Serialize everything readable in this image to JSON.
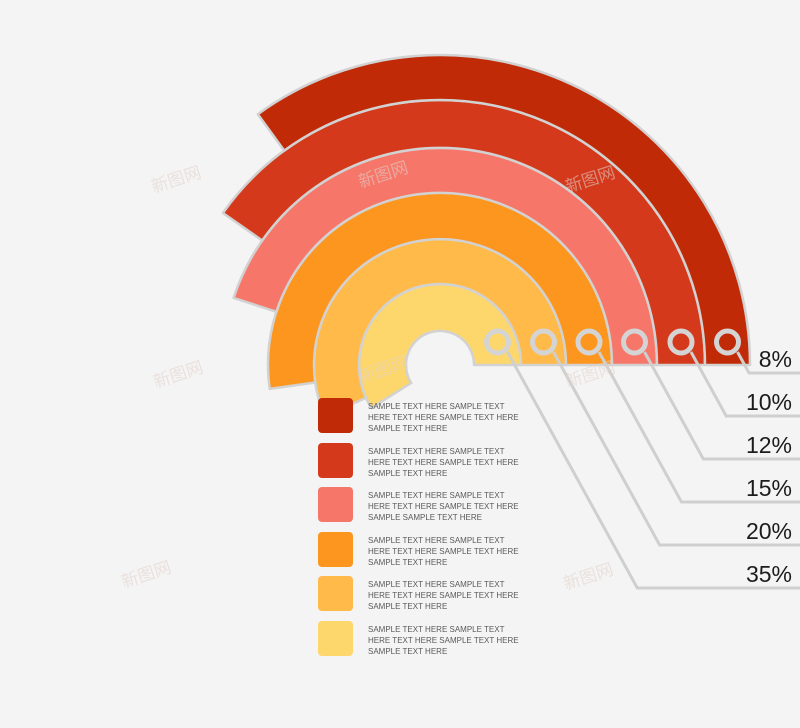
{
  "chart_data": {
    "type": "radial-bar",
    "values": [
      8,
      10,
      12,
      15,
      20,
      35
    ],
    "value_labels": [
      "8%",
      "10%",
      "12%",
      "15%",
      "20%",
      "35%"
    ],
    "unit": "%",
    "colors": [
      "#c02a07",
      "#d4391c",
      "#f6766a",
      "#fd961f",
      "#ffba4a",
      "#fdd76b"
    ],
    "legend": [
      {
        "color": "#c02a07",
        "text": "SAMPLE TEXT HERE SAMPLE TEXT HERE TEXT HERE SAMPLE TEXT HERE SAMPLE TEXT HERE"
      },
      {
        "color": "#d4391c",
        "text": "SAMPLE TEXT HERE SAMPLE TEXT HERE TEXT HERE SAMPLE TEXT HERE SAMPLE TEXT HERE"
      },
      {
        "color": "#f6766a",
        "text": "SAMPLE TEXT HERE SAMPLE TEXT HERE TEXT HERE SAMPLE TEXT HERE SAMPLE SAMPLE TEXT HERE"
      },
      {
        "color": "#fd961f",
        "text": "SAMPLE TEXT HERE SAMPLE TEXT HERE TEXT HERE SAMPLE TEXT HERE SAMPLE TEXT HERE"
      },
      {
        "color": "#ffba4a",
        "text": "SAMPLE TEXT HERE SAMPLE TEXT HERE TEXT HERE SAMPLE TEXT HERE SAMPLE TEXT HERE"
      },
      {
        "color": "#fdd76b",
        "text": "SAMPLE TEXT HERE SAMPLE TEXT HERE TEXT HERE SAMPLE TEXT HERE SAMPLE TEXT HERE"
      }
    ]
  },
  "watermark": {
    "text": "新图网",
    "color": "#e2d2cc"
  }
}
